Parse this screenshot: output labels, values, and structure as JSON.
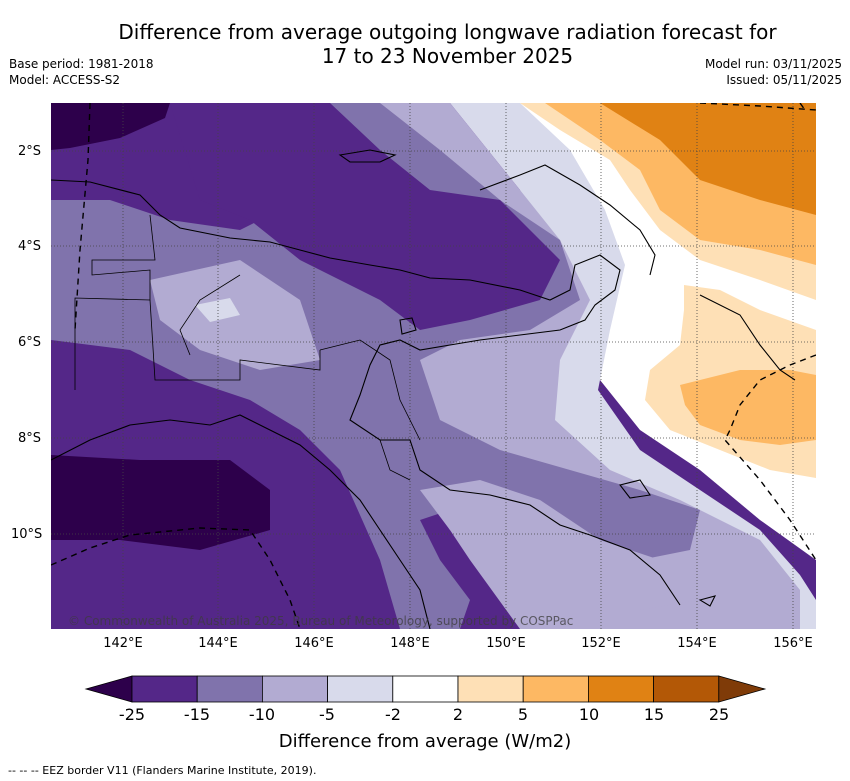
{
  "header": {
    "title_line1": "Difference from average outgoing longwave radiation forecast for",
    "title_line2": "17 to 23 November 2025",
    "base_period": "Base period: 1981-2018",
    "model": "Model: ACCESS-S2",
    "model_run": "Model run: 03/11/2025",
    "issued": "Issued: 05/11/2025"
  },
  "map": {
    "lat_labels": [
      "2°S",
      "4°S",
      "6°S",
      "8°S",
      "10°S"
    ],
    "lon_labels": [
      "142°E",
      "144°E",
      "146°E",
      "148°E",
      "150°E",
      "152°E",
      "154°E",
      "156°E"
    ],
    "copyright": "© Commonwealth of Australia 2025, Bureau of Meteorology, supported by COSPPac"
  },
  "colorbar": {
    "title": "Difference from average (W/m2)",
    "ticks": [
      "-25",
      "-15",
      "-10",
      "-5",
      "-2",
      "2",
      "5",
      "10",
      "15",
      "25"
    ],
    "colors": [
      "#2d004b",
      "#542788",
      "#8073ac",
      "#b2abd2",
      "#d8daeb",
      "#ffffff",
      "#fee0b6",
      "#fdb863",
      "#e08214",
      "#b35806",
      "#7f3b08"
    ]
  },
  "footer": {
    "eez_note": "--  --  -- EEZ border V11 (Flanders Marine Institute, 2019)."
  }
}
